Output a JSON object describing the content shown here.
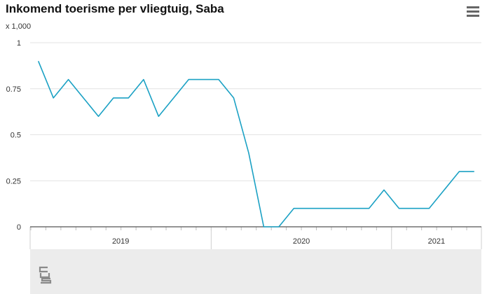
{
  "header": {
    "title": "Inkomend toerisme per vliegtuig, Saba",
    "unit": "x 1,000"
  },
  "icons": {
    "menu": "hamburger-menu-icon",
    "logo": "cbs-logo"
  },
  "colors": {
    "series": "#1ba1c4",
    "grid": "#e3e3e3",
    "axis": "#555555",
    "footer": "#ececec"
  },
  "chart_data": {
    "type": "line",
    "title": "Inkomend toerisme per vliegtuig, Saba",
    "ylabel": "x 1,000",
    "ylim": [
      0,
      1
    ],
    "yticks": [
      0,
      0.25,
      0.5,
      0.75,
      1
    ],
    "ytick_labels": [
      "0",
      "0.25",
      "0.5",
      "0.75",
      "1"
    ],
    "grid": true,
    "legend": "none",
    "x_groups": [
      {
        "label": "2019",
        "months": 12
      },
      {
        "label": "2020",
        "months": 12
      },
      {
        "label": "2021",
        "months": 6
      }
    ],
    "x": [
      "2019-01",
      "2019-02",
      "2019-03",
      "2019-04",
      "2019-05",
      "2019-06",
      "2019-07",
      "2019-08",
      "2019-09",
      "2019-10",
      "2019-11",
      "2019-12",
      "2020-01",
      "2020-02",
      "2020-03",
      "2020-04",
      "2020-05",
      "2020-06",
      "2020-07",
      "2020-08",
      "2020-09",
      "2020-10",
      "2020-11",
      "2020-12",
      "2021-01",
      "2021-02",
      "2021-03",
      "2021-04",
      "2021-05",
      "2021-06"
    ],
    "series": [
      {
        "values": [
          0.9,
          0.7,
          0.8,
          0.7,
          0.6,
          0.7,
          0.7,
          0.8,
          0.6,
          0.7,
          0.8,
          0.8,
          0.8,
          0.7,
          0.4,
          0.0,
          0.0,
          0.1,
          0.1,
          0.1,
          0.1,
          0.1,
          0.1,
          0.2,
          0.1,
          0.1,
          0.1,
          0.2,
          0.3,
          0.3
        ]
      }
    ]
  }
}
